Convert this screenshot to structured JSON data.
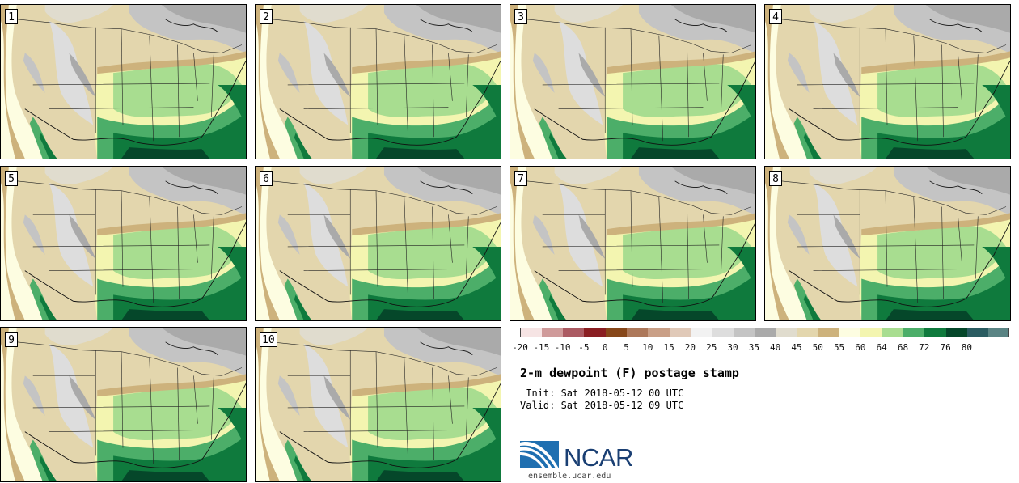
{
  "panels": [
    "1",
    "2",
    "3",
    "4",
    "5",
    "6",
    "7",
    "8",
    "9",
    "10"
  ],
  "colorbar": {
    "ticks": [
      "-20",
      "-15",
      "-10",
      "-5",
      "0",
      "5",
      "10",
      "15",
      "20",
      "25",
      "30",
      "35",
      "40",
      "45",
      "50",
      "55",
      "60",
      "64",
      "68",
      "72",
      "76",
      "80"
    ],
    "colors": [
      "#f6e4e4",
      "#cf9a9a",
      "#ab5a62",
      "#8a1e22",
      "#87471a",
      "#ad785a",
      "#c99f86",
      "#e0c9b8",
      "#f2f2f2",
      "#dddddd",
      "#c4c4c4",
      "#aaaaaa",
      "#e0dcce",
      "#e3d6ad",
      "#cdb27c",
      "#fdfde1",
      "#f3f5b0",
      "#a8dd90",
      "#4cae69",
      "#0f7a3d",
      "#05472a",
      "#2a5c61",
      "#5a8484"
    ]
  },
  "title": "2-m dewpoint (F) postage stamp",
  "init": " Init: Sat 2018-05-12 00 UTC",
  "valid": "Valid: Sat 2018-05-12 09 UTC",
  "logo": {
    "text": "NCAR",
    "url": "ensemble.ucar.edu"
  }
}
